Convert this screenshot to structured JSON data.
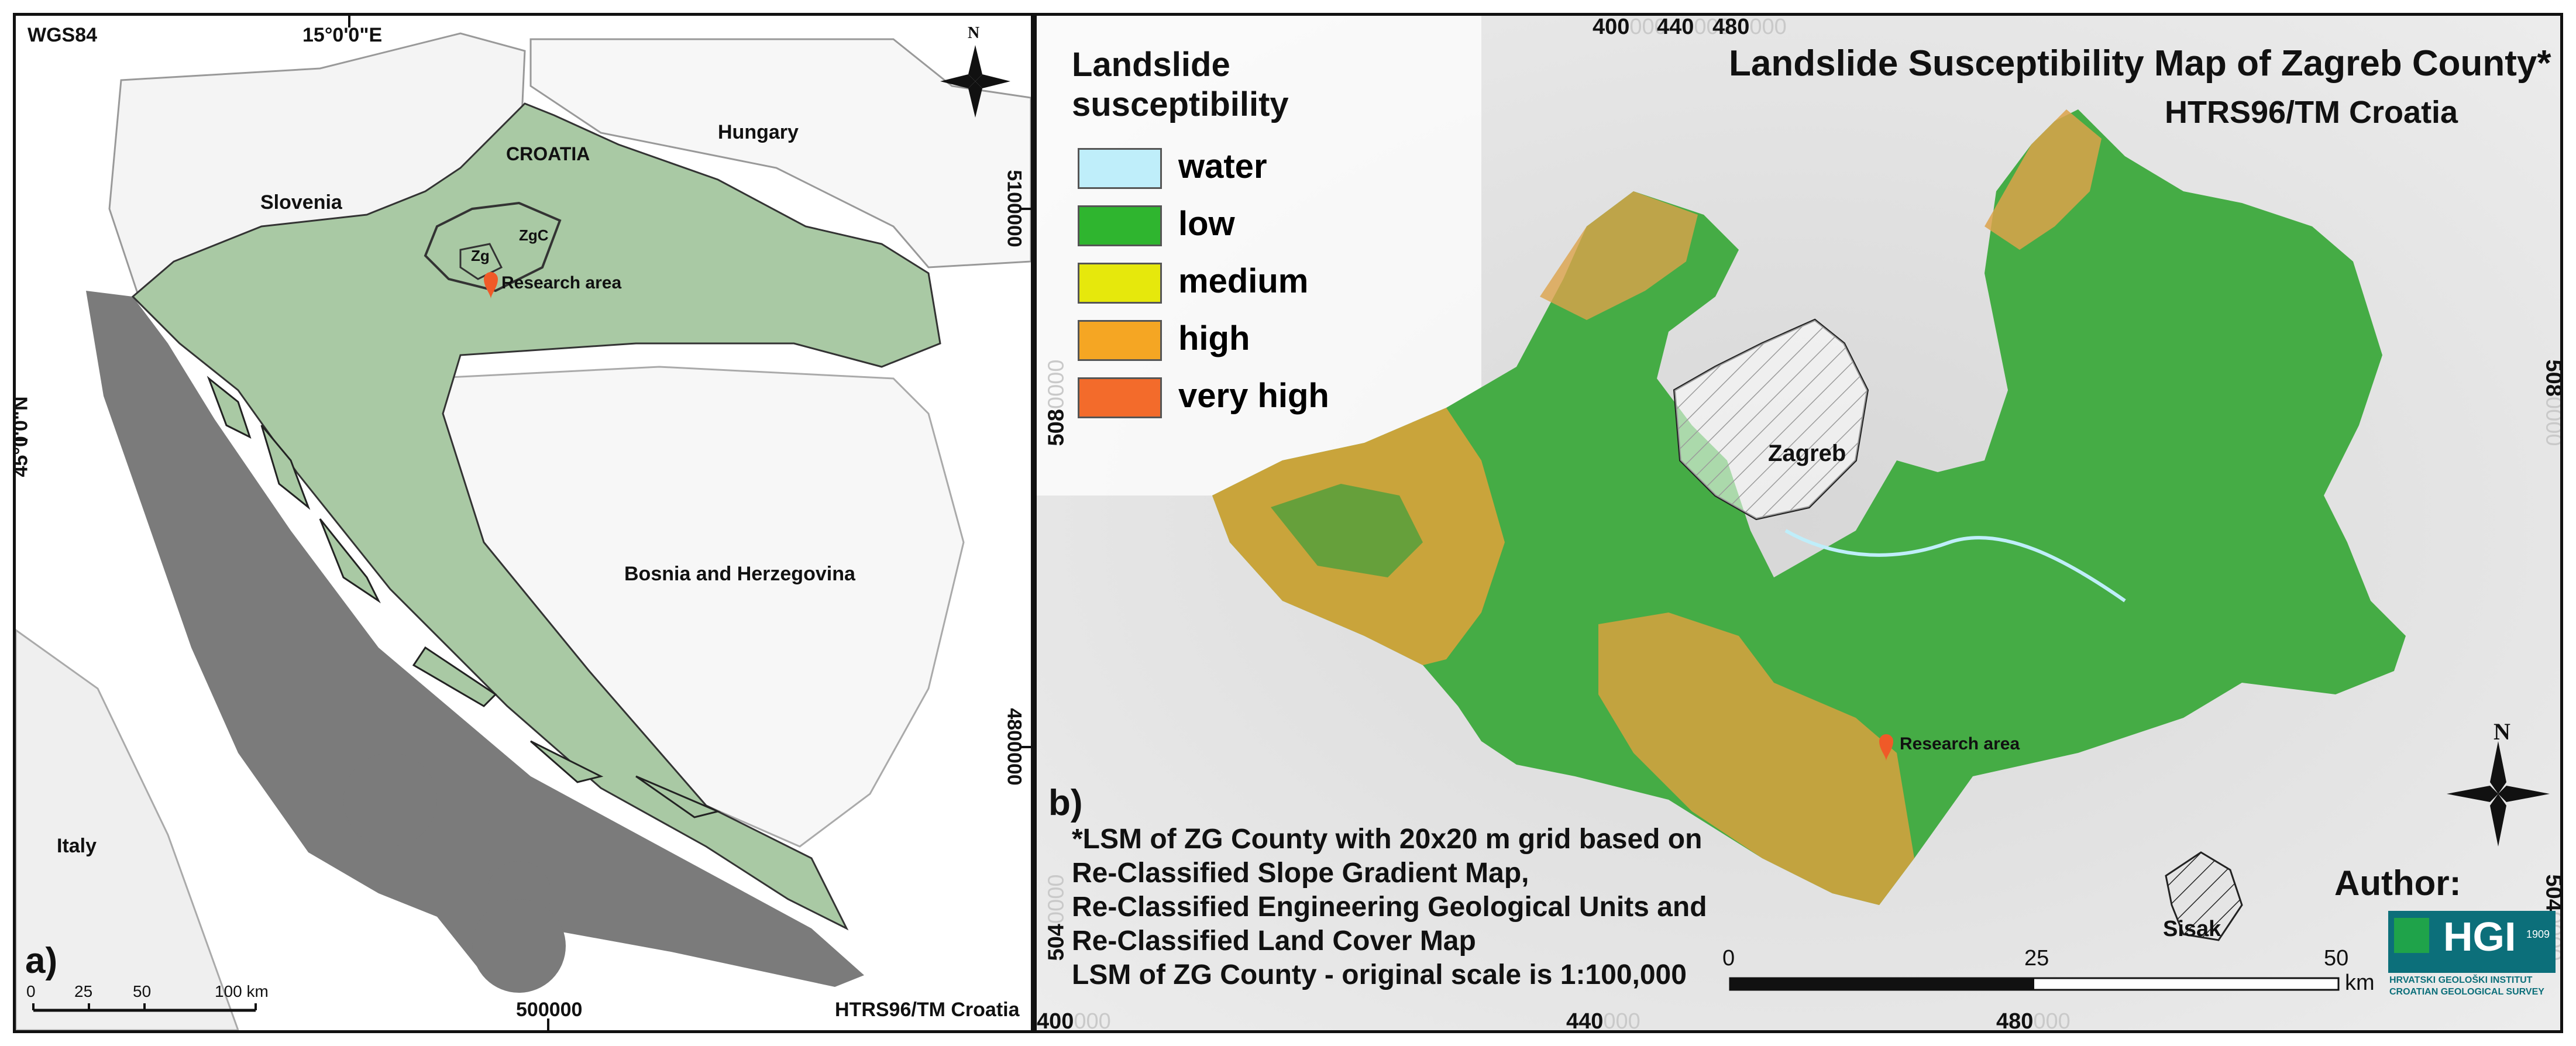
{
  "panel_a": {
    "crs": "WGS84",
    "crs_bottom": "HTRS96/TM Croatia",
    "longitude_label": "15°0'0\"E",
    "latitude_label": "45°0'0\"N",
    "right_labels": [
      "5100000",
      "4800000"
    ],
    "bottom_label": "500000",
    "countries": {
      "slovenia": "Slovenia",
      "hungary": "Hungary",
      "croatia": "CROATIA",
      "bosnia": "Bosnia and Herzegovina",
      "italy": "Italy"
    },
    "zg": "Zg",
    "zgc": "ZgC",
    "research_area": "Research area",
    "panel_letter": "a)",
    "scalebar": [
      "0",
      "25",
      "50",
      "100 km"
    ],
    "north": "N"
  },
  "panel_b": {
    "title": "Landslide Susceptibility Map of Zagreb County*",
    "subtitle": "HTRS96/TM Croatia",
    "legend_title": "Landslide susceptibility",
    "legend": [
      {
        "label": "water",
        "color": "#bfeefa"
      },
      {
        "label": "low",
        "color": "#2fb52f"
      },
      {
        "label": "medium",
        "color": "#e6e80c"
      },
      {
        "label": "high",
        "color": "#f5a623"
      },
      {
        "label": "very high",
        "color": "#f36b2b"
      }
    ],
    "top_ticks": [
      {
        "bold": "400",
        "ghost": "000"
      },
      {
        "bold": "440",
        "ghost": "000"
      },
      {
        "bold": "480",
        "ghost": "000"
      }
    ],
    "bottom_ticks": [
      {
        "bold": "400",
        "ghost": "000"
      },
      {
        "bold": "440",
        "ghost": "000"
      },
      {
        "bold": "480",
        "ghost": "000"
      }
    ],
    "left_ticks": [
      {
        "bold": "508",
        "ghost": "0000"
      },
      {
        "bold": "504",
        "ghost": "0000"
      }
    ],
    "right_ticks": [
      {
        "bold": "508",
        "ghost": "0000"
      },
      {
        "bold": "504",
        "ghost": "0000"
      }
    ],
    "city_label": "Zagreb",
    "sisak_label": "Sisak",
    "research_area": "Research area",
    "panel_letter": "b)",
    "note_lines": [
      "*LSM of ZG County with 20x20 m grid based on",
      "Re-Classified Slope Gradient Map,",
      "Re-Classified Engineering Geological Units and",
      "Re-Classified Land Cover Map",
      "LSM of ZG County - original scale is 1:100,000"
    ],
    "scalebar": [
      "0",
      "25",
      "50",
      "km"
    ],
    "author": "Author:",
    "logo": {
      "text": "HGI",
      "year": "1909",
      "line1": "HRVATSKI GEOLOŠKI INSTITUT",
      "line2": "CROATIAN GEOLOGICAL SURVEY"
    },
    "north": "N"
  },
  "colors": {
    "frame": "#111111",
    "croatia_fill": "#a9c9a4",
    "sea_gray": "#7a7a7a",
    "hillshade": "#dcdcdc"
  }
}
